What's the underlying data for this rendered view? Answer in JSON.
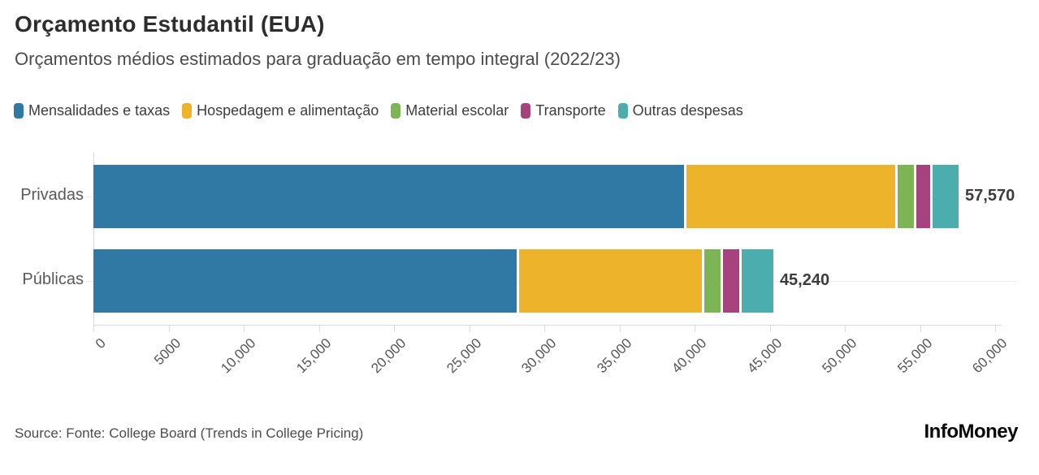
{
  "header": {
    "title": "Orçamento Estudantil (EUA)",
    "subtitle": "Orçamentos médios estimados para graduação em tempo integral (2022/23)"
  },
  "chart_data": {
    "type": "bar",
    "orientation": "horizontal",
    "stacked": true,
    "grid": "category-centerlines",
    "legend_position": "top",
    "categories": [
      "Privadas",
      "Públicas"
    ],
    "series": [
      {
        "name": "Mensalidades e taxas",
        "color": "#2f79a4",
        "values": [
          39400,
          28240
        ]
      },
      {
        "name": "Hospedagem e alimentação",
        "color": "#edb32b",
        "values": [
          14030,
          12310
        ]
      },
      {
        "name": "Material escolar",
        "color": "#7db556",
        "values": [
          1240,
          1240
        ]
      },
      {
        "name": "Transporte",
        "color": "#a6437e",
        "values": [
          1060,
          1290
        ]
      },
      {
        "name": "Outras despesas",
        "color": "#4badad",
        "values": [
          1840,
          2160
        ]
      }
    ],
    "totals": [
      57570,
      45240
    ],
    "total_labels": [
      "57,570",
      "45,240"
    ],
    "xlim": [
      0,
      60000
    ],
    "x_ticks": [
      0,
      5000,
      10000,
      15000,
      20000,
      25000,
      30000,
      35000,
      40000,
      45000,
      50000,
      55000,
      60000
    ],
    "x_tick_labels": [
      "0",
      "5000",
      "10,000",
      "15,000",
      "20,000",
      "25,000",
      "30,000",
      "35,000",
      "40,000",
      "45,000",
      "50,000",
      "55,000",
      "60,000"
    ]
  },
  "footer": {
    "source": "Source: Fonte: College Board (Trends in College Pricing)",
    "brand": "InfoMoney"
  }
}
